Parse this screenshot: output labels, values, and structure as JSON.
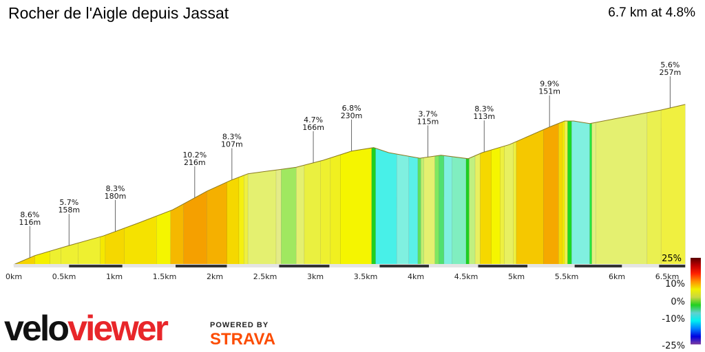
{
  "header": {
    "title": "Rocher de l'Aigle depuis Jassat",
    "summary": "6.7 km at 4.8%"
  },
  "branding": {
    "logo_part1": "velo",
    "logo_part2": "viewer",
    "powered_by": "POWERED BY",
    "strava": "STRAVA"
  },
  "chart_data": {
    "type": "area",
    "title": "",
    "xlabel": "",
    "ylabel": "",
    "xlim": [
      0,
      6.7
    ],
    "x_unit": "km",
    "x_ticks": [
      "0km",
      "0.5km",
      "1km",
      "1.5km",
      "2km",
      "2.5km",
      "3km",
      "3.5km",
      "4km",
      "4.5km",
      "5km",
      "5.5km",
      "6km",
      "6.5km"
    ],
    "x_tick_values": [
      0,
      0.5,
      1,
      1.5,
      2,
      2.5,
      3,
      3.5,
      4,
      4.5,
      5,
      5.5,
      6,
      6.5
    ],
    "profile": {
      "km": [
        0,
        0.21,
        0.55,
        0.89,
        1.23,
        1.58,
        1.92,
        2.16,
        2.33,
        2.67,
        2.81,
        3.08,
        3.36,
        3.58,
        3.73,
        4.04,
        4.25,
        4.52,
        4.66,
        4.93,
        5.34,
        5.48,
        5.57,
        5.73,
        6.44,
        6.68
      ],
      "elevation_gain_m": [
        3,
        21,
        41,
        60,
        85,
        112,
        149,
        171,
        184,
        193,
        197,
        211,
        229,
        236,
        226,
        215,
        221,
        214,
        226,
        242,
        278,
        289,
        289,
        284,
        311,
        322
      ]
    },
    "gradient_bands": [
      [
        0,
        0.21,
        "#f5d400"
      ],
      [
        0.21,
        0.36,
        "#f5f000"
      ],
      [
        0.36,
        0.47,
        "#eef030"
      ],
      [
        0.47,
        0.64,
        "#eef032"
      ],
      [
        0.64,
        0.86,
        "#eef030"
      ],
      [
        0.86,
        0.91,
        "#f5e800"
      ],
      [
        0.91,
        1.1,
        "#f5d800"
      ],
      [
        1.1,
        1.42,
        "#f5e200"
      ],
      [
        1.42,
        1.56,
        "#f5f500"
      ],
      [
        1.56,
        1.69,
        "#f5b800"
      ],
      [
        1.69,
        1.92,
        "#f5a000"
      ],
      [
        1.92,
        2.12,
        "#f5b000"
      ],
      [
        2.12,
        2.24,
        "#f5d800"
      ],
      [
        2.24,
        2.29,
        "#f5f010"
      ],
      [
        2.29,
        2.33,
        "#eef040"
      ],
      [
        2.33,
        2.61,
        "#e4f070"
      ],
      [
        2.61,
        2.66,
        "#e4ec88"
      ],
      [
        2.66,
        2.81,
        "#a0e860"
      ],
      [
        2.81,
        2.89,
        "#e4f070"
      ],
      [
        2.89,
        3.05,
        "#eaf040"
      ],
      [
        3.05,
        3.15,
        "#eef030"
      ],
      [
        3.15,
        3.25,
        "#f0f020"
      ],
      [
        3.25,
        3.56,
        "#f5f500"
      ],
      [
        3.56,
        3.6,
        "#20d020"
      ],
      [
        3.6,
        3.81,
        "#48f0e8"
      ],
      [
        3.81,
        3.93,
        "#80f0e0"
      ],
      [
        3.93,
        4.02,
        "#5af0e8"
      ],
      [
        4.02,
        4.05,
        "#60e060"
      ],
      [
        4.05,
        4.08,
        "#c0f070"
      ],
      [
        4.08,
        4.19,
        "#e4f070"
      ],
      [
        4.19,
        4.23,
        "#80e860"
      ],
      [
        4.23,
        4.28,
        "#50e070"
      ],
      [
        4.28,
        4.36,
        "#80f0e0"
      ],
      [
        4.36,
        4.5,
        "#80eec0"
      ],
      [
        4.5,
        4.53,
        "#20d020"
      ],
      [
        4.53,
        4.59,
        "#c0f080"
      ],
      [
        4.59,
        4.64,
        "#e8f060"
      ],
      [
        4.64,
        4.75,
        "#f5d800"
      ],
      [
        4.75,
        4.84,
        "#f5f500"
      ],
      [
        4.84,
        4.88,
        "#eef040"
      ],
      [
        4.88,
        4.97,
        "#e8f060"
      ],
      [
        4.97,
        5.0,
        "#eef040"
      ],
      [
        5.0,
        5.27,
        "#f5c800"
      ],
      [
        5.27,
        5.42,
        "#f5a800"
      ],
      [
        5.42,
        5.46,
        "#f5d800"
      ],
      [
        5.46,
        5.48,
        "#f5f000"
      ],
      [
        5.48,
        5.51,
        "#eef050"
      ],
      [
        5.51,
        5.55,
        "#20d820"
      ],
      [
        5.55,
        5.73,
        "#80f0e0"
      ],
      [
        5.73,
        5.75,
        "#20e840"
      ],
      [
        5.75,
        5.79,
        "#e0f080"
      ],
      [
        5.79,
        6.3,
        "#e4f070"
      ],
      [
        6.3,
        6.44,
        "#eaf050"
      ],
      [
        6.44,
        6.68,
        "#f0f040"
      ]
    ],
    "annotations": [
      {
        "km": 0.16,
        "grade": "8.6%",
        "length": "116m"
      },
      {
        "km": 0.55,
        "grade": "5.7%",
        "length": "158m"
      },
      {
        "km": 1.01,
        "grade": "8.3%",
        "length": "180m"
      },
      {
        "km": 1.8,
        "grade": "10.2%",
        "length": "216m"
      },
      {
        "km": 2.17,
        "grade": "8.3%",
        "length": "107m"
      },
      {
        "km": 2.98,
        "grade": "4.7%",
        "length": "166m"
      },
      {
        "km": 3.36,
        "grade": "6.8%",
        "length": "230m"
      },
      {
        "km": 4.12,
        "grade": "3.7%",
        "length": "115m"
      },
      {
        "km": 4.68,
        "grade": "8.3%",
        "length": "113m"
      },
      {
        "km": 5.33,
        "grade": "9.9%",
        "length": "151m"
      },
      {
        "km": 6.53,
        "grade": "5.6%",
        "length": "257m"
      }
    ],
    "corner_label": "25%",
    "legend": {
      "type": "gradient-colorbar",
      "placement": "bottom-right",
      "labels": [
        "10%",
        "0%",
        "-10%",
        "-25%"
      ],
      "colors": [
        "#5a0000",
        "#c00000",
        "#ff2000",
        "#ff9000",
        "#f0f000",
        "#c8d840",
        "#20d020",
        "#60d0d0",
        "#00f0f0",
        "#0080ff",
        "#0000e0",
        "#8040a0"
      ]
    }
  }
}
